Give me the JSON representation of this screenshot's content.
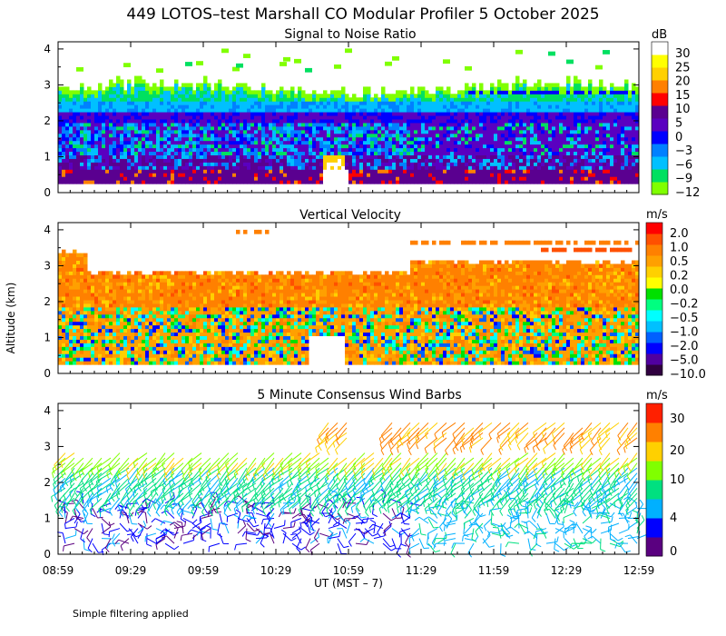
{
  "title": "449 LOTOS–test Marshall CO Modular Profiler  5 October 2025",
  "ylabel": "Altitude (km)",
  "xlabel": "UT  (MST – 7)",
  "footnote": "Simple filtering applied",
  "colors": {
    "snr": [
      "#80ff00",
      "#00e060",
      "#00c0ff",
      "#0080ff",
      "#0000ff",
      "#5a00c0",
      "#5a0090",
      "#ff0000",
      "#ff8000",
      "#ffd000",
      "#ffff00",
      "#ffffff"
    ],
    "vv": [
      "#300040",
      "#5000a0",
      "#0000ff",
      "#0060ff",
      "#00c0ff",
      "#00ffff",
      "#00ff80",
      "#00e000",
      "#ffff00",
      "#ffd000",
      "#ffa000",
      "#ff8000",
      "#ff5000",
      "#ff0000"
    ],
    "wind": [
      "#5a0080",
      "#0000ff",
      "#00b0ff",
      "#00e080",
      "#80ff00",
      "#ffd000",
      "#ff8000",
      "#ff2000"
    ]
  },
  "chart_data": [
    {
      "type": "heatmap",
      "title": "Signal to Noise Ratio",
      "unit": "dB",
      "xlim": [
        8.98,
        12.98
      ],
      "ylim": [
        0,
        4.2
      ],
      "x_ticks": [
        "08:59",
        "09:29",
        "09:59",
        "10:29",
        "10:59",
        "11:29",
        "11:59",
        "12:29",
        "12:59"
      ],
      "y_ticks": [
        "0",
        "1",
        "2",
        "3",
        "4"
      ],
      "colorbar_labels": [
        "30",
        "25",
        "20",
        "15",
        "10",
        "5",
        "0",
        "−3",
        "−6",
        "−9",
        "−12"
      ],
      "layers_km": [
        {
          "band": "bright near-surface (>5 dB, locally 20-30 dB)",
          "range": [
            0.25,
            1.1
          ]
        },
        {
          "band": "0 to 10 dB",
          "range": [
            0.8,
            2.1
          ]
        },
        {
          "band": "-6 to 0 dB",
          "range": [
            1.9,
            2.6
          ]
        },
        {
          "band": "-9 to -3 dB",
          "range": [
            2.6,
            3.0
          ]
        },
        {
          "band": "-12 dB sporadic",
          "range": [
            3.0,
            4.0
          ]
        }
      ]
    },
    {
      "type": "heatmap",
      "title": "Vertical Velocity",
      "unit": "m/s",
      "xlim": [
        8.98,
        12.98
      ],
      "ylim": [
        0,
        4.2
      ],
      "x_ticks": [
        "08:59",
        "09:29",
        "09:59",
        "10:29",
        "10:59",
        "11:29",
        "11:59",
        "12:29",
        "12:59"
      ],
      "y_ticks": [
        "0",
        "1",
        "2",
        "3",
        "4"
      ],
      "colorbar_labels": [
        "2.0",
        "1.0",
        "0.5",
        "0.2",
        "0.0",
        "−0.2",
        "−0.5",
        "−1.0",
        "−2.0",
        "−5.0",
        "−10.0"
      ],
      "layers_km": [
        {
          "band": "mixed updrafts/downdrafts -2 to +0.5 m/s",
          "range": [
            0.25,
            1.8
          ]
        },
        {
          "band": "weak positive 0.2 to 1.0 m/s",
          "range": [
            1.8,
            3.0
          ]
        },
        {
          "band": "sparse 0.5 to 1.0 m/s",
          "range": [
            3.3,
            4.0
          ]
        }
      ]
    },
    {
      "type": "scatter",
      "title": "5 Minute Consensus Wind Barbs",
      "unit": "m/s",
      "xlim": [
        8.98,
        12.98
      ],
      "ylim": [
        0,
        4.2
      ],
      "x_ticks": [
        "08:59",
        "09:29",
        "09:59",
        "10:29",
        "10:59",
        "11:29",
        "11:59",
        "12:29",
        "12:59"
      ],
      "y_ticks": [
        "0",
        "1",
        "2",
        "3",
        "4"
      ],
      "colorbar_labels": [
        "30",
        "20",
        "10",
        "4",
        "0"
      ],
      "speed_by_altitude_km": [
        {
          "range": [
            0.25,
            1.5
          ],
          "speed_ms": [
            0,
            5
          ]
        },
        {
          "range": [
            1.5,
            2.5
          ],
          "speed_ms": [
            8,
            12
          ]
        },
        {
          "range": [
            2.5,
            3.0
          ],
          "speed_ms": [
            12,
            16
          ]
        },
        {
          "range": [
            3.0,
            3.8
          ],
          "speed_ms": [
            18,
            24
          ]
        }
      ]
    }
  ]
}
